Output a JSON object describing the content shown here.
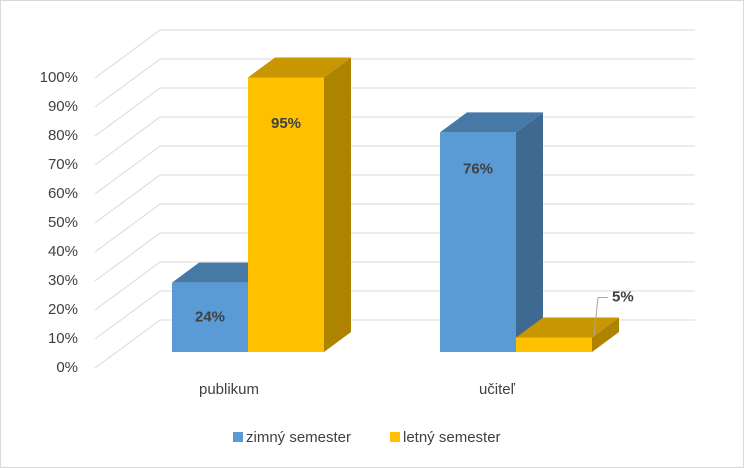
{
  "chart_data": {
    "type": "bar3d",
    "categories": [
      "publikum",
      "učiteľ"
    ],
    "series": [
      {
        "name": "zimný semester",
        "color": "#5b9bd5",
        "values": [
          24,
          76
        ],
        "value_labels": [
          "24%",
          "76%"
        ]
      },
      {
        "name": "letný semester",
        "color": "#ffc000",
        "values": [
          95,
          5
        ],
        "value_labels": [
          "95%",
          "5%"
        ]
      }
    ],
    "ylim": [
      0,
      100
    ],
    "yticks": [
      {
        "value": 0,
        "label": "0%"
      },
      {
        "value": 10,
        "label": "10%"
      },
      {
        "value": 20,
        "label": "20%"
      },
      {
        "value": 30,
        "label": "30%"
      },
      {
        "value": 40,
        "label": "40%"
      },
      {
        "value": 50,
        "label": "50%"
      },
      {
        "value": 60,
        "label": "60%"
      },
      {
        "value": 70,
        "label": "70%"
      },
      {
        "value": 80,
        "label": "80%"
      },
      {
        "value": 90,
        "label": "90%"
      },
      {
        "value": 100,
        "label": "100%"
      }
    ],
    "grid": true,
    "legend": "bottom"
  }
}
